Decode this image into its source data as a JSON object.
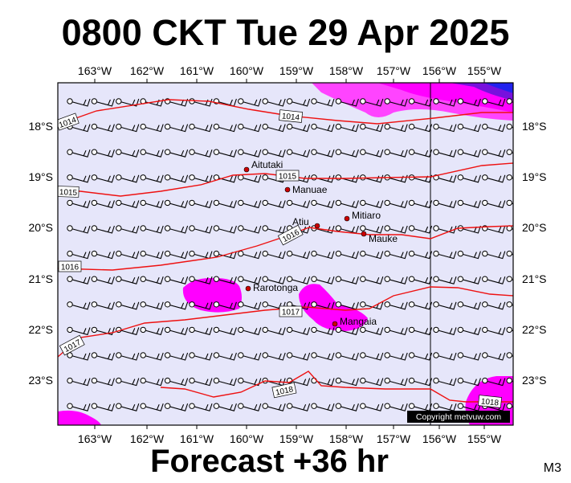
{
  "title": "0800 CKT Tue 29 Apr 2025",
  "subtitle": "Forecast +36 hr",
  "code": "M3",
  "copyright": "Copyright metvuw.com",
  "colors": {
    "ocean": "#e6e6fa",
    "isobar": "#ee1111",
    "rain_light": "#dd00dd",
    "rain_heavy": "#ff00ff",
    "rain_blue": "#2222ee",
    "island": "#cc0000"
  },
  "lon_ticks": [
    "163°W",
    "162°W",
    "161°W",
    "160°W",
    "159°W",
    "158°W",
    "157°W",
    "156°W",
    "155°W"
  ],
  "lat_ticks": [
    "18°S",
    "19°S",
    "20°S",
    "21°S",
    "22°S",
    "23°S"
  ],
  "islands": [
    {
      "name": "Aitutaki"
    },
    {
      "name": "Manuae"
    },
    {
      "name": "Mitiaro"
    },
    {
      "name": "Atiu"
    },
    {
      "name": "Mauke"
    },
    {
      "name": "Rarotonga"
    },
    {
      "name": "Mangaia"
    }
  ],
  "isobar_labels": [
    "1014",
    "1014",
    "1015",
    "1015",
    "1016",
    "1016",
    "1017",
    "1017",
    "1018",
    "1018"
  ]
}
